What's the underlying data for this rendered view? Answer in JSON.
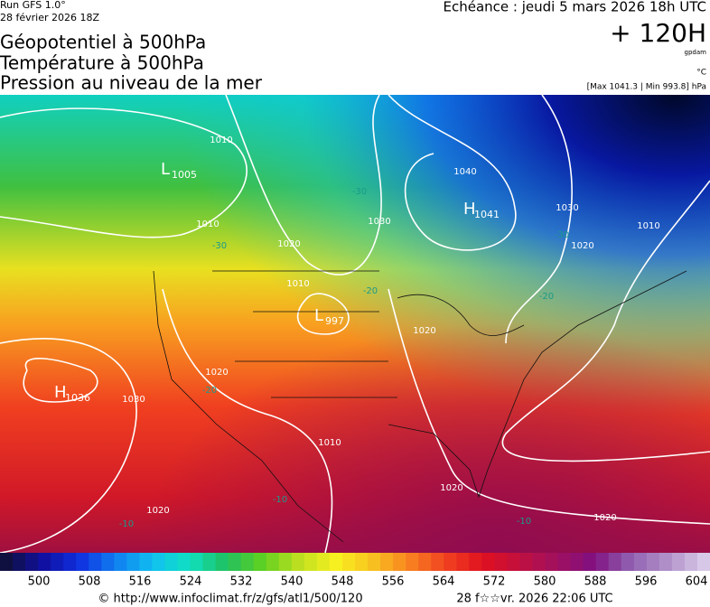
{
  "header": {
    "run": "Run GFS 1.0°",
    "run_date": "28 février 2026 18Z",
    "titles": [
      "Géopotentiel à 500hPa",
      "Température à 500hPa",
      "Pression au niveau de la mer"
    ],
    "valid": "Echéance : jeudi 5 mars 2026 18h UTC",
    "lead": "+ 120H",
    "unit_geo": "gpdam",
    "unit_temp": "°C",
    "pressure_range": "[Max 1041.3 | Min 993.8] hPa"
  },
  "map": {
    "centers": [
      {
        "type": "L",
        "value": 1005
      },
      {
        "type": "H",
        "value": 1041
      },
      {
        "type": "L",
        "value": 997
      },
      {
        "type": "H",
        "value": 1036
      }
    ],
    "isobar_labels": [
      1010,
      1010,
      1020,
      1030,
      1040,
      1030,
      1020,
      1010,
      1010,
      1020,
      1020,
      1030,
      1010,
      1020,
      1020,
      1020
    ],
    "temperature_labels": [
      -30,
      -30,
      -30,
      -20,
      -20,
      -20,
      -10,
      -10,
      -10
    ]
  },
  "legend": {
    "labels": [
      500,
      508,
      516,
      524,
      532,
      540,
      548,
      556,
      564,
      572,
      580,
      588,
      596,
      604
    ]
  },
  "footer": {
    "url": "© http://www.infoclimat.fr/z/gfs/atl1/500/120",
    "timestamp": "28 f☆☆vr. 2026 22:06 UTC"
  }
}
